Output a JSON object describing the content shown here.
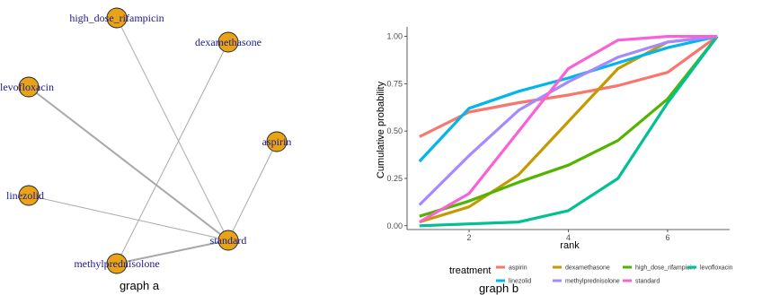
{
  "chart_data": [
    {
      "type": "network",
      "caption": "graph a",
      "nodes": [
        {
          "id": "high_dose_rifampicin",
          "label": "high_dose_rifampicin"
        },
        {
          "id": "dexamethasone",
          "label": "dexamethasone"
        },
        {
          "id": "levofloxacin",
          "label": "levofloxacin"
        },
        {
          "id": "aspirin",
          "label": "aspirin"
        },
        {
          "id": "linezolid",
          "label": "linezolid"
        },
        {
          "id": "standard",
          "label": "standard"
        },
        {
          "id": "methylprednisolone",
          "label": "methylprednisolone"
        }
      ],
      "edges": [
        {
          "source": "high_dose_rifampicin",
          "target": "standard",
          "weight": 1
        },
        {
          "source": "dexamethasone",
          "target": "methylprednisolone",
          "weight": 1
        },
        {
          "source": "levofloxacin",
          "target": "standard",
          "weight": 2
        },
        {
          "source": "aspirin",
          "target": "standard",
          "weight": 1
        },
        {
          "source": "linezolid",
          "target": "standard",
          "weight": 1
        },
        {
          "source": "methylprednisolone",
          "target": "standard",
          "weight": 2
        }
      ],
      "node_color": "#E8A317"
    },
    {
      "type": "line",
      "caption": "graph b",
      "xlabel": "rank",
      "ylabel": "Cumulative probability",
      "xlim": [
        0.75,
        7.25
      ],
      "ylim": [
        -0.02,
        1.05
      ],
      "xticks": [
        2,
        4,
        6
      ],
      "yticks": [
        0.0,
        0.25,
        0.5,
        0.75,
        1.0
      ],
      "ytick_labels": [
        "0.00",
        "0.25",
        "0.50",
        "0.75",
        "1.00"
      ],
      "grid": false,
      "legend_title": "treatment",
      "legend_position": "bottom",
      "x": [
        1,
        2,
        3,
        4,
        5,
        6,
        7
      ],
      "series": [
        {
          "name": "aspirin",
          "color": "#F8766D",
          "values": [
            0.47,
            0.6,
            0.65,
            0.69,
            0.74,
            0.81,
            1.0
          ]
        },
        {
          "name": "dexamethasone",
          "color": "#C49A00",
          "values": [
            0.02,
            0.1,
            0.27,
            0.55,
            0.83,
            0.97,
            1.0
          ]
        },
        {
          "name": "high_dose_rifampicin",
          "color": "#53B400",
          "values": [
            0.05,
            0.13,
            0.23,
            0.32,
            0.45,
            0.67,
            1.0
          ]
        },
        {
          "name": "levofloxacin",
          "color": "#00C094",
          "values": [
            0.0,
            0.01,
            0.02,
            0.08,
            0.25,
            0.65,
            1.0
          ]
        },
        {
          "name": "linezolid",
          "color": "#00B6EB",
          "values": [
            0.34,
            0.62,
            0.71,
            0.78,
            0.86,
            0.94,
            1.0
          ]
        },
        {
          "name": "methylprednisolone",
          "color": "#A58AFF",
          "values": [
            0.11,
            0.37,
            0.61,
            0.76,
            0.89,
            0.97,
            1.0
          ]
        },
        {
          "name": "standard",
          "color": "#FB61D7",
          "values": [
            0.02,
            0.17,
            0.5,
            0.83,
            0.98,
            1.0,
            1.0
          ]
        }
      ]
    }
  ]
}
